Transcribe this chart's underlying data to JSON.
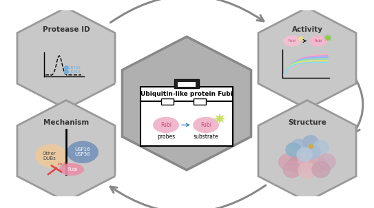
{
  "bg_color": "#ffffff",
  "hex_fill": "#c8c8c8",
  "hex_edge": "#999999",
  "hex_edge_width": 2.0,
  "center_hex_fill": "#b0b0b0",
  "center_hex_edge": "#888888",
  "toolbox_bg": "#ffffff",
  "toolbox_border": "#111111",
  "title": "Ubiquitin-like protein Fubi",
  "labels": [
    "Protease ID",
    "Activity",
    "Mechanism",
    "Structure"
  ],
  "arrow_color": "#888888",
  "fubi_pink": "#e87a9a",
  "fubi_light_pink": "#f0b8cc",
  "fubi_star_color": "#c8e060",
  "usp_blue": "#7090b8",
  "other_dubs_orange": "#f0c898",
  "inhibitor_red": "#e04040",
  "curve_colors": [
    "#ffaabb",
    "#cc99ee",
    "#88bbff",
    "#99ddaa",
    "#ddee66",
    "#88ddee"
  ],
  "activity_bg": "#f5f5f5",
  "protease_bg": "#f5f5f5",
  "mechanism_bg": "#f5f5f5",
  "structure_bg": "#f5f5f5"
}
